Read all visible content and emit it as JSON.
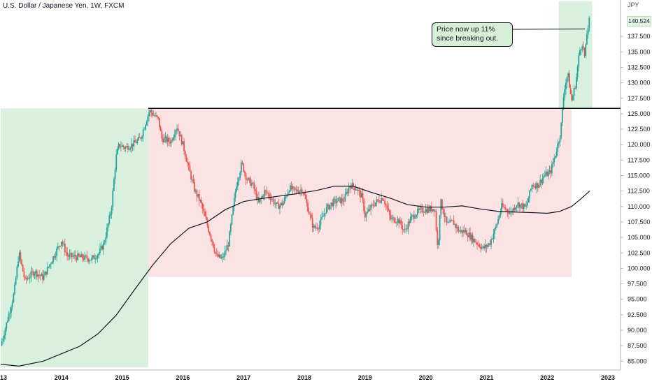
{
  "header": {
    "title": "U.S. Dollar / Japanese Yen, 1W, FXCM",
    "currency_unit": "JPY",
    "last_price_label": "140.524"
  },
  "annotation": {
    "text": "Price now up 11% since breaking out."
  },
  "colors": {
    "up_candle": "#26a69a",
    "down_candle": "#ef5350",
    "ma_line": "#131722",
    "green_zone": "#d9f0df",
    "red_zone": "#fbe3e3",
    "breakout_line": "#000000",
    "callout_fill": "#d6efd6"
  },
  "chart_data": {
    "type": "candlestick",
    "title": "U.S. Dollar / Japanese Yen, 1W, FXCM",
    "ylabel": "JPY",
    "ylim": [
      84.0,
      144.0
    ],
    "xlim": [
      2013.0,
      2023.0
    ],
    "x_ticks": [
      "13",
      "2014",
      "2015",
      "2016",
      "2017",
      "2018",
      "2019",
      "2020",
      "2021",
      "2022",
      "2023"
    ],
    "y_ticks": [
      "85.000",
      "87.500",
      "90.000",
      "92.500",
      "95.000",
      "97.500",
      "100.000",
      "102.500",
      "105.000",
      "107.500",
      "110.000",
      "112.500",
      "115.000",
      "117.500",
      "120.000",
      "122.500",
      "125.000",
      "127.500",
      "130.000",
      "132.500",
      "135.000",
      "137.500",
      "140.524"
    ],
    "last_price": 140.524,
    "close_path": [
      [
        2013.0,
        87.5
      ],
      [
        2013.12,
        92.0
      ],
      [
        2013.22,
        96.0
      ],
      [
        2013.3,
        102.5
      ],
      [
        2013.4,
        98.0
      ],
      [
        2013.55,
        99.5
      ],
      [
        2013.7,
        98.5
      ],
      [
        2013.85,
        101.5
      ],
      [
        2014.0,
        104.5
      ],
      [
        2014.1,
        102.0
      ],
      [
        2014.3,
        101.8
      ],
      [
        2014.5,
        101.5
      ],
      [
        2014.62,
        102.5
      ],
      [
        2014.7,
        104.0
      ],
      [
        2014.82,
        109.5
      ],
      [
        2014.9,
        118.0
      ],
      [
        2014.95,
        120.0
      ],
      [
        2015.05,
        119.5
      ],
      [
        2015.2,
        120.2
      ],
      [
        2015.3,
        121.0
      ],
      [
        2015.4,
        124.0
      ],
      [
        2015.45,
        125.5
      ],
      [
        2015.6,
        124.0
      ],
      [
        2015.65,
        121.0
      ],
      [
        2015.8,
        120.5
      ],
      [
        2015.9,
        123.0
      ],
      [
        2016.0,
        120.0
      ],
      [
        2016.1,
        116.0
      ],
      [
        2016.2,
        112.5
      ],
      [
        2016.3,
        110.5
      ],
      [
        2016.4,
        107.0
      ],
      [
        2016.48,
        104.5
      ],
      [
        2016.55,
        102.0
      ],
      [
        2016.65,
        101.5
      ],
      [
        2016.75,
        104.0
      ],
      [
        2016.88,
        113.5
      ],
      [
        2016.97,
        117.0
      ],
      [
        2017.05,
        114.5
      ],
      [
        2017.15,
        113.5
      ],
      [
        2017.25,
        110.5
      ],
      [
        2017.35,
        112.5
      ],
      [
        2017.45,
        111.5
      ],
      [
        2017.55,
        110.0
      ],
      [
        2017.65,
        110.5
      ],
      [
        2017.75,
        113.0
      ],
      [
        2017.85,
        112.5
      ],
      [
        2017.97,
        112.8
      ],
      [
        2018.05,
        110.0
      ],
      [
        2018.15,
        106.5
      ],
      [
        2018.25,
        107.0
      ],
      [
        2018.35,
        109.5
      ],
      [
        2018.45,
        110.5
      ],
      [
        2018.55,
        111.0
      ],
      [
        2018.65,
        111.0
      ],
      [
        2018.75,
        113.5
      ],
      [
        2018.85,
        113.0
      ],
      [
        2018.95,
        111.5
      ],
      [
        2019.0,
        108.5
      ],
      [
        2019.15,
        110.5
      ],
      [
        2019.3,
        111.5
      ],
      [
        2019.42,
        108.0
      ],
      [
        2019.55,
        107.8
      ],
      [
        2019.65,
        106.0
      ],
      [
        2019.75,
        108.0
      ],
      [
        2019.85,
        109.0
      ],
      [
        2019.95,
        109.5
      ],
      [
        2020.05,
        109.5
      ],
      [
        2020.15,
        109.8
      ],
      [
        2020.2,
        102.5
      ],
      [
        2020.24,
        111.0
      ],
      [
        2020.35,
        107.0
      ],
      [
        2020.45,
        107.5
      ],
      [
        2020.55,
        106.0
      ],
      [
        2020.65,
        106.0
      ],
      [
        2020.8,
        104.5
      ],
      [
        2020.95,
        103.2
      ],
      [
        2021.05,
        104.0
      ],
      [
        2021.15,
        106.5
      ],
      [
        2021.25,
        110.0
      ],
      [
        2021.4,
        109.0
      ],
      [
        2021.5,
        110.5
      ],
      [
        2021.65,
        109.8
      ],
      [
        2021.75,
        113.5
      ],
      [
        2021.85,
        113.5
      ],
      [
        2021.95,
        115.0
      ],
      [
        2022.05,
        115.5
      ],
      [
        2022.15,
        119.0
      ],
      [
        2022.22,
        122.0
      ],
      [
        2022.28,
        129.0
      ],
      [
        2022.34,
        131.5
      ],
      [
        2022.4,
        127.0
      ],
      [
        2022.47,
        130.0
      ],
      [
        2022.53,
        135.0
      ],
      [
        2022.58,
        136.5
      ],
      [
        2022.62,
        134.0
      ],
      [
        2022.66,
        138.5
      ],
      [
        2022.7,
        140.524
      ]
    ],
    "moving_average": [
      [
        2013.0,
        84.5
      ],
      [
        2013.3,
        84.2
      ],
      [
        2013.7,
        85.0
      ],
      [
        2014.0,
        86.2
      ],
      [
        2014.3,
        87.4
      ],
      [
        2014.6,
        89.4
      ],
      [
        2014.9,
        92.4
      ],
      [
        2015.2,
        96.5
      ],
      [
        2015.5,
        100.5
      ],
      [
        2015.8,
        104.0
      ],
      [
        2016.1,
        106.5
      ],
      [
        2016.4,
        107.5
      ],
      [
        2016.7,
        109.5
      ],
      [
        2017.0,
        110.8
      ],
      [
        2017.3,
        111.3
      ],
      [
        2017.6,
        111.7
      ],
      [
        2017.9,
        112.1
      ],
      [
        2018.2,
        112.6
      ],
      [
        2018.5,
        113.3
      ],
      [
        2018.8,
        113.3
      ],
      [
        2019.1,
        112.3
      ],
      [
        2019.4,
        111.4
      ],
      [
        2019.7,
        110.3
      ],
      [
        2020.0,
        109.9
      ],
      [
        2020.3,
        109.9
      ],
      [
        2020.6,
        110.1
      ],
      [
        2020.9,
        109.6
      ],
      [
        2021.2,
        109.2
      ],
      [
        2021.5,
        109.1
      ],
      [
        2021.8,
        109.0
      ],
      [
        2022.0,
        108.9
      ],
      [
        2022.2,
        109.2
      ],
      [
        2022.4,
        110.0
      ],
      [
        2022.55,
        111.2
      ],
      [
        2022.7,
        112.5
      ]
    ],
    "breakout_level": 125.86,
    "zones": [
      {
        "kind": "green",
        "x0": 2013.0,
        "x1": 2015.43,
        "y0": 84.0,
        "y1": 125.86
      },
      {
        "kind": "red",
        "x0": 2015.43,
        "x1": 2022.4,
        "y0": 98.6,
        "y1": 125.86
      },
      {
        "kind": "green",
        "x0": 2022.19,
        "x1": 2022.74,
        "y0": 125.86,
        "y1": 143.2
      }
    ]
  }
}
